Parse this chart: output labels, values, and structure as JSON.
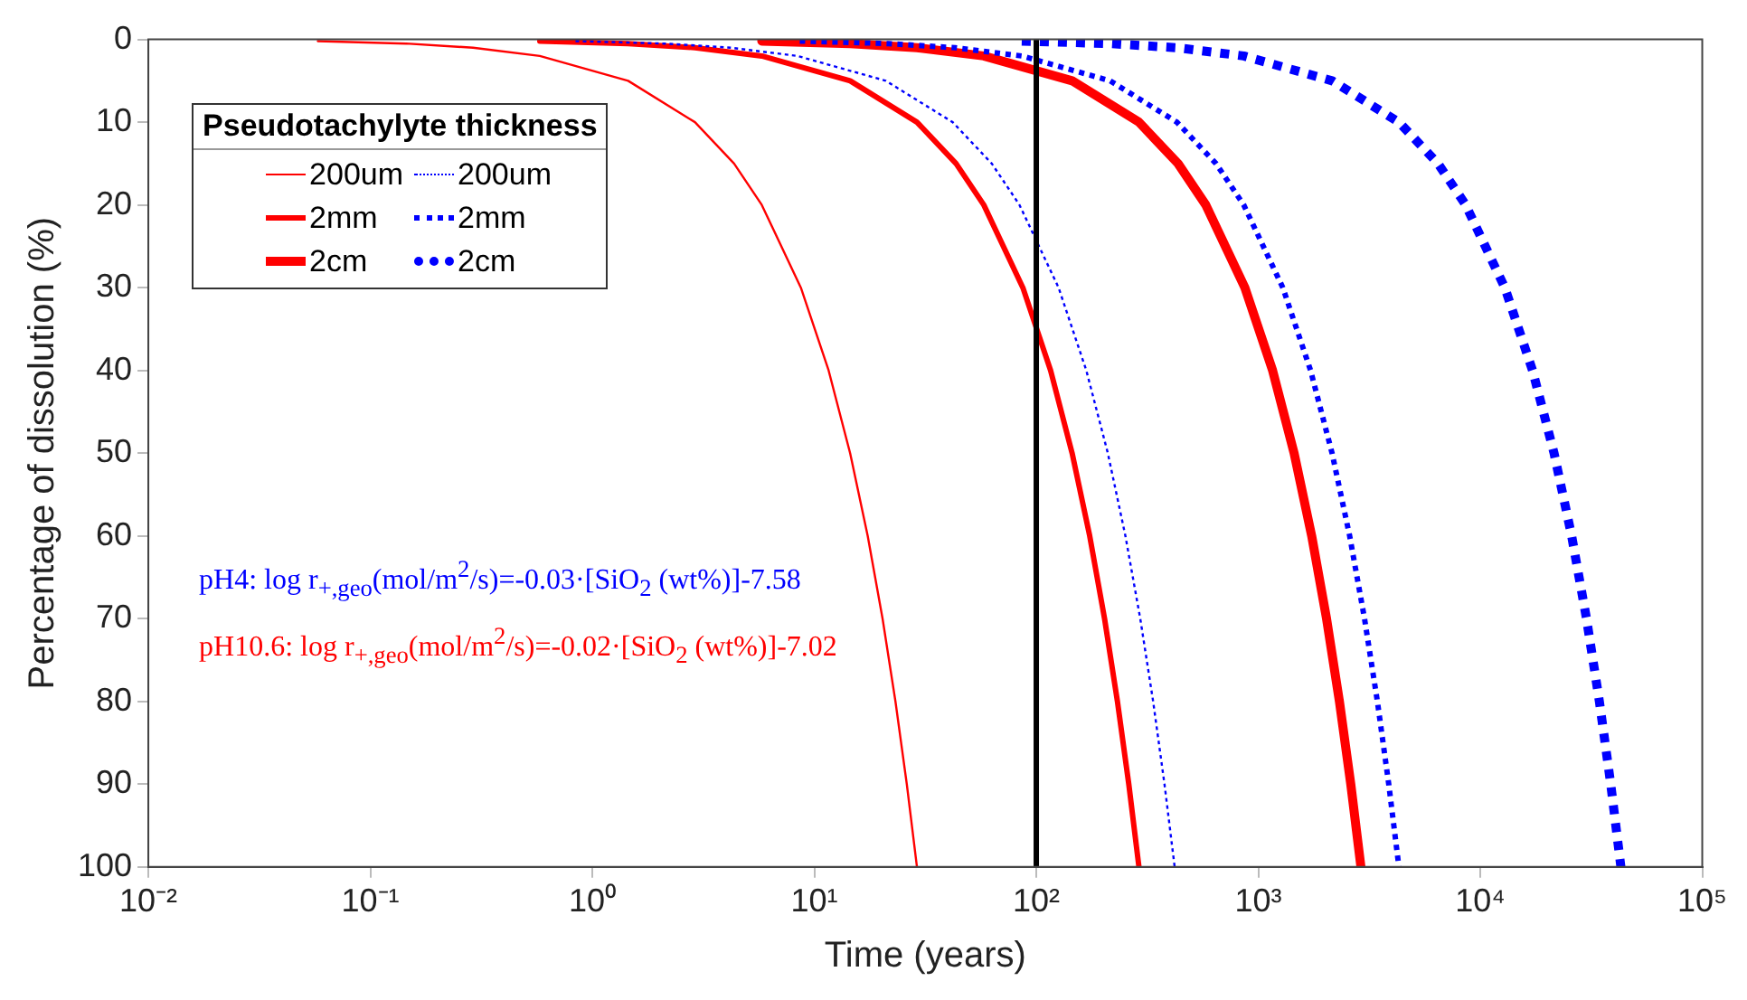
{
  "chart_data": {
    "type": "line",
    "xlabel": "Time (years)",
    "ylabel": "Percentage of dissolution (%)",
    "legend_title": "Pseudotachylyte thickness",
    "legend": "top left",
    "grid": false,
    "log": "x",
    "marker": "none",
    "xlim": [
      0.01,
      100000
    ],
    "xticks": [
      {
        "value": 0.01,
        "label": "10⁻²"
      },
      {
        "value": 0.1,
        "label": "10⁻¹"
      },
      {
        "value": 1,
        "label": "10⁰"
      },
      {
        "value": 10,
        "label": "10¹"
      },
      {
        "value": 100,
        "label": "10²"
      },
      {
        "value": 1000,
        "label": "10³"
      },
      {
        "value": 10000,
        "label": "10⁴"
      },
      {
        "value": 100000,
        "label": "10⁵"
      }
    ],
    "ylim": [
      100,
      0
    ],
    "yticks": [
      0,
      10,
      20,
      30,
      40,
      50,
      60,
      70,
      80,
      90,
      100
    ],
    "series": [
      {
        "name": "200um",
        "color": "#ff0000",
        "line_style": "solid",
        "x": [
          0.058,
          0.145,
          0.29,
          0.58,
          1.45,
          2.9,
          4.35,
          5.8,
          8.7,
          11.6,
          14.5,
          17.4,
          20.3,
          23.2,
          26.1,
          29
        ],
        "values": [
          0.2,
          0.5,
          1,
          2,
          5,
          10,
          15,
          20,
          30,
          40,
          50,
          60,
          70,
          80,
          90,
          100
        ]
      },
      {
        "name": "2mm",
        "color": "#ff0000",
        "line_style": "solid",
        "x": [
          0.58,
          1.45,
          2.9,
          5.8,
          14.5,
          29,
          43.5,
          58,
          87,
          116,
          145,
          174,
          203,
          232,
          261,
          290
        ],
        "values": [
          0.2,
          0.5,
          1,
          2,
          5,
          10,
          15,
          20,
          30,
          40,
          50,
          60,
          70,
          80,
          90,
          100
        ]
      },
      {
        "name": "2cm",
        "color": "#ff0000",
        "line_style": "solid",
        "x": [
          5.8,
          14.5,
          29,
          58,
          145,
          290,
          435,
          580,
          870,
          1160,
          1450,
          1740,
          2030,
          2320,
          2610,
          2900
        ],
        "values": [
          0.2,
          0.5,
          1,
          2,
          5,
          10,
          15,
          20,
          30,
          40,
          50,
          60,
          70,
          80,
          90,
          100
        ]
      },
      {
        "name": "200um",
        "color": "#0000ff",
        "line_style": "dotted",
        "x": [
          0.84,
          2.1,
          4.2,
          8.4,
          21,
          42,
          63,
          84,
          126,
          168,
          210,
          252,
          294,
          336,
          378,
          420
        ],
        "values": [
          0.2,
          0.5,
          1,
          2,
          5,
          10,
          15,
          20,
          30,
          40,
          50,
          60,
          70,
          80,
          90,
          100
        ]
      },
      {
        "name": "2mm",
        "color": "#0000ff",
        "line_style": "dotted",
        "x": [
          8.6,
          21.5,
          43,
          86,
          215,
          430,
          645,
          860,
          1290,
          1720,
          2150,
          2580,
          3010,
          3440,
          3870,
          4300
        ],
        "values": [
          0.2,
          0.5,
          1,
          2,
          5,
          10,
          15,
          20,
          30,
          40,
          50,
          60,
          70,
          80,
          90,
          100
        ]
      },
      {
        "name": "2cm",
        "color": "#0000ff",
        "line_style": "dotted",
        "x": [
          86,
          215,
          430,
          860,
          2150,
          4300,
          6450,
          8600,
          12900,
          17200,
          21500,
          25800,
          30100,
          34400,
          38700,
          43000
        ],
        "values": [
          0.2,
          0.5,
          1,
          2,
          5,
          10,
          15,
          20,
          30,
          40,
          50,
          60,
          70,
          80,
          90,
          100
        ]
      }
    ],
    "ref_lines": [
      {
        "axis": "x",
        "value": 100,
        "color": "#000000"
      }
    ],
    "annotations": [
      "pH4: log r$_{+,geo}$(mol/m$^{2}$/s)=-0.03·[SiO$_{2}$ (wt%)]-7.58",
      "pH10.6: log r$_{+,geo}$(mol/m$^{2}$/s)=-0.02·[SiO$_{2}$ (wt%)]-7.02"
    ]
  }
}
